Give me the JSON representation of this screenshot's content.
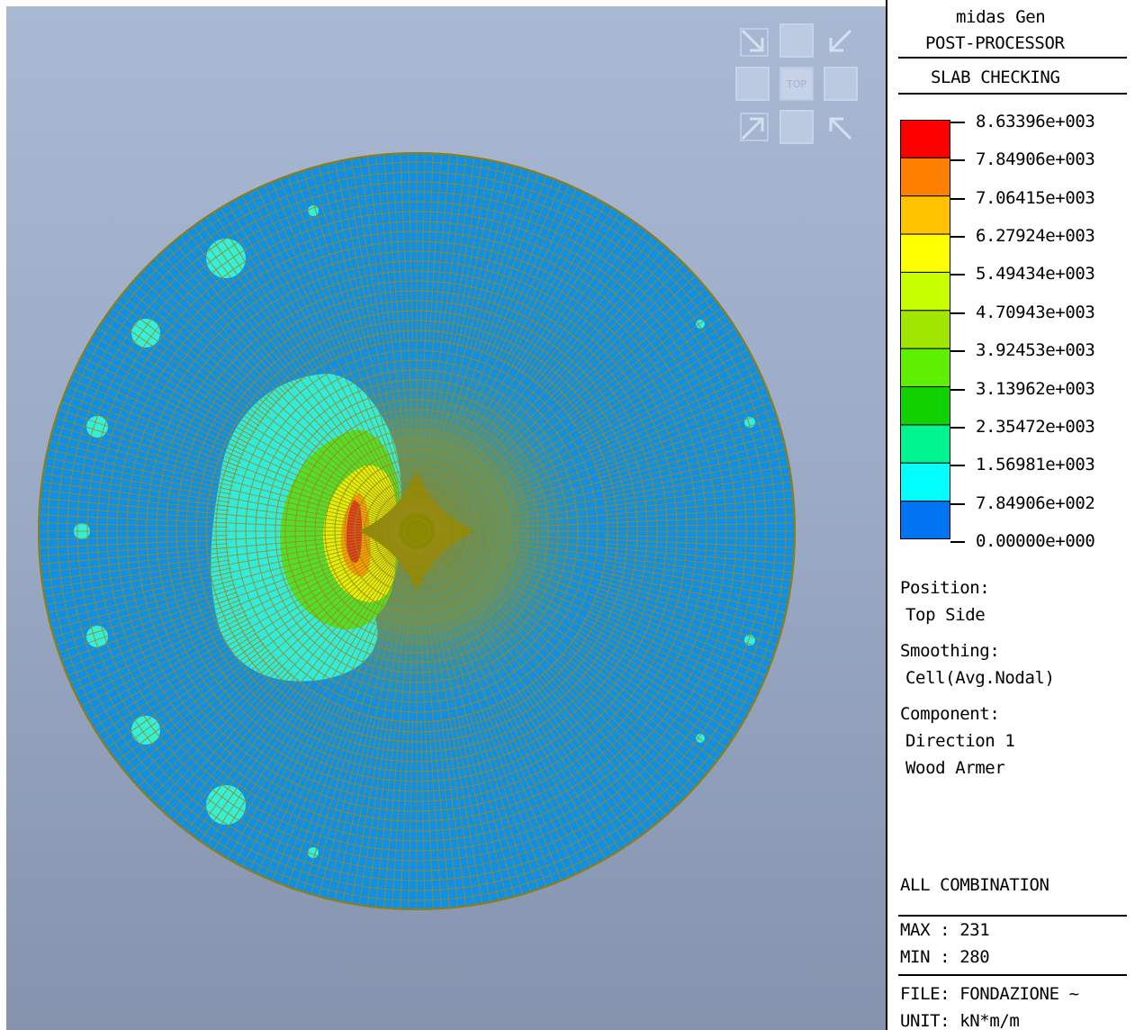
{
  "app": {
    "name": "midas Gen",
    "mode": "POST-PROCESSOR",
    "result_type": "SLAB CHECKING"
  },
  "viewcube": {
    "face_label": "TOP"
  },
  "legend": {
    "values": [
      "8.63396e+003",
      "7.84906e+003",
      "7.06415e+003",
      "6.27924e+003",
      "5.49434e+003",
      "4.70943e+003",
      "3.92453e+003",
      "3.13962e+003",
      "2.35472e+003",
      "1.56981e+003",
      "7.84906e+002",
      "0.00000e+000"
    ],
    "colors": [
      "#ff0000",
      "#ff7f00",
      "#ffc300",
      "#ffff00",
      "#c8ff00",
      "#a0e600",
      "#5fef00",
      "#10d200",
      "#00f590",
      "#00ffff",
      "#0074f2"
    ]
  },
  "info": {
    "position_label": "Position:",
    "position_value": "Top Side",
    "smoothing_label": "Smoothing:",
    "smoothing_value": "Cell(Avg.Nodal)",
    "component_label": "Component:",
    "component_value_1": "Direction 1",
    "component_value_2": "Wood Armer",
    "combination": "ALL COMBINATION",
    "max": "MAX : 231",
    "min": "MIN : 280",
    "file": "FILE: FONDAZIONE ~",
    "unit": "UNIT: kN*m/m"
  },
  "model_colors": {
    "slab": "#0e8fe8",
    "mesh_line": "#9c8a1c",
    "center_zone": "#8a8a00",
    "low_zone": "#33f0dc",
    "mid_zone": "#55dd22",
    "high_zone": "#eaf000",
    "peak_zone": "#e2301a"
  }
}
